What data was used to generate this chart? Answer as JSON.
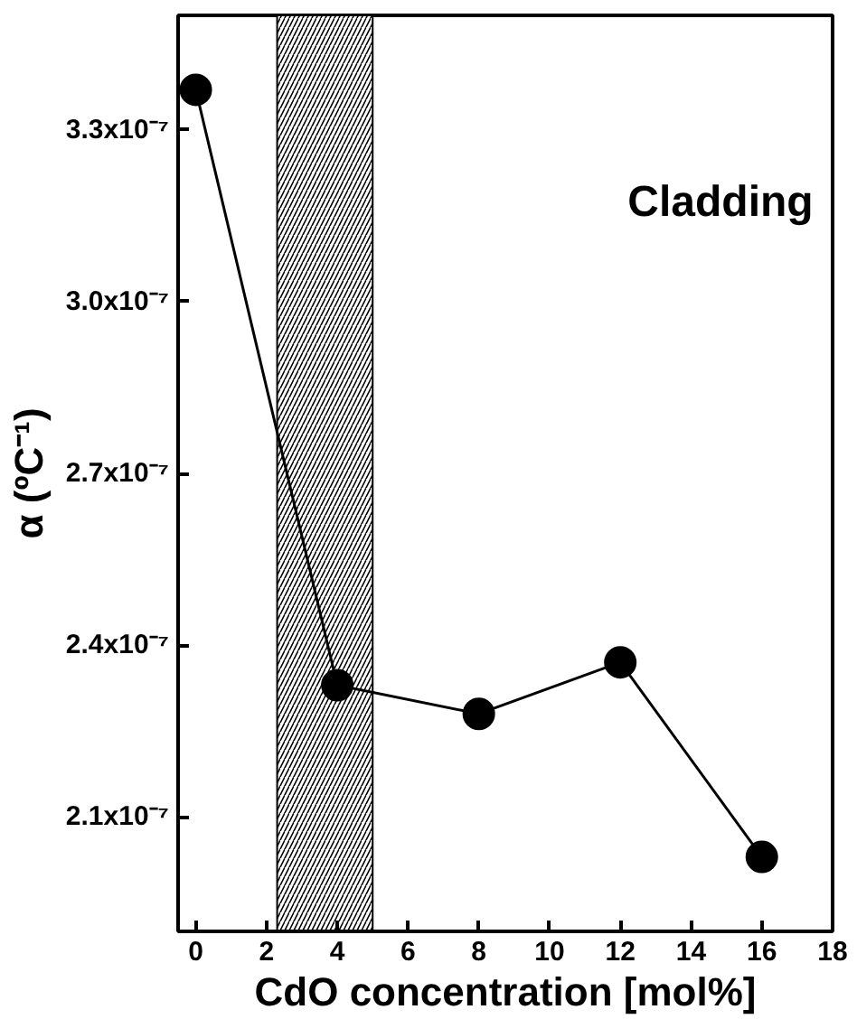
{
  "chart_data": {
    "type": "line",
    "xlabel": "CdO concentration [mol%]",
    "ylabel": "α (ºC⁻¹)",
    "x": [
      0,
      4,
      8,
      12,
      16
    ],
    "series": [
      {
        "color": "#000000",
        "values": [
          3.37e-07,
          2.33e-07,
          2.28e-07,
          2.37e-07,
          2.03e-07
        ]
      }
    ],
    "marker": "circle",
    "line_style": "solid",
    "grid": false,
    "xlim": [
      -0.5,
      18
    ],
    "xticks": [
      0,
      2,
      4,
      6,
      8,
      10,
      12,
      14,
      16,
      18
    ],
    "ylim": [
      1.9e-07,
      3.5e-07
    ],
    "yticks": [
      {
        "value": 2.1e-07,
        "label": "2.1x10⁻⁷"
      },
      {
        "value": 2.4e-07,
        "label": "2.4x10⁻⁷"
      },
      {
        "value": 2.7e-07,
        "label": "2.7x10⁻⁷"
      },
      {
        "value": 3e-07,
        "label": "3.0x10⁻⁷"
      },
      {
        "value": 3.3e-07,
        "label": "3.3x10⁻⁷"
      }
    ],
    "bands": [
      {
        "axis": "x",
        "from": 2.3,
        "to": 5,
        "color": "#000000"
      }
    ],
    "annotations": [
      "Cladding"
    ]
  }
}
